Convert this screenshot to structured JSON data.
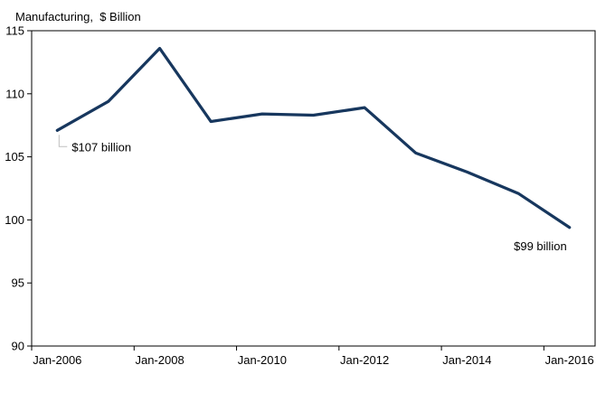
{
  "chart_data": {
    "type": "line",
    "title": "Manufacturing,  $ Billion",
    "categories": [
      "Jan-2006",
      "Jan-2007",
      "Jan-2008",
      "Jan-2009",
      "Jan-2010",
      "Jan-2011",
      "Jan-2012",
      "Jan-2013",
      "Jan-2014",
      "Jan-2015",
      "Jan-2016"
    ],
    "series": [
      {
        "name": "Manufacturing",
        "values": [
          107.1,
          109.4,
          113.6,
          107.8,
          108.4,
          108.3,
          108.9,
          105.3,
          103.8,
          102.1,
          99.4
        ]
      }
    ],
    "xlabel": "",
    "ylabel": "",
    "ylim": [
      90,
      115
    ],
    "yticks": [
      90,
      95,
      100,
      105,
      110,
      115
    ],
    "xtick_labels": [
      "Jan-2006",
      "Jan-2008",
      "Jan-2010",
      "Jan-2012",
      "Jan-2014",
      "Jan-2016"
    ],
    "xtick_every": 2,
    "grid": false,
    "legend": "none",
    "colors": {
      "line": "#17375E",
      "axis": "#000000",
      "text": "#000000",
      "leader": "#BFBFBF",
      "background": "#FFFFFF"
    },
    "annotations": [
      {
        "text": "$107 billion",
        "category": "Jan-2006",
        "placement": "below-right",
        "leader": true
      },
      {
        "text": "$99 billion",
        "category": "Jan-2016",
        "placement": "below-left",
        "leader": false
      }
    ]
  }
}
